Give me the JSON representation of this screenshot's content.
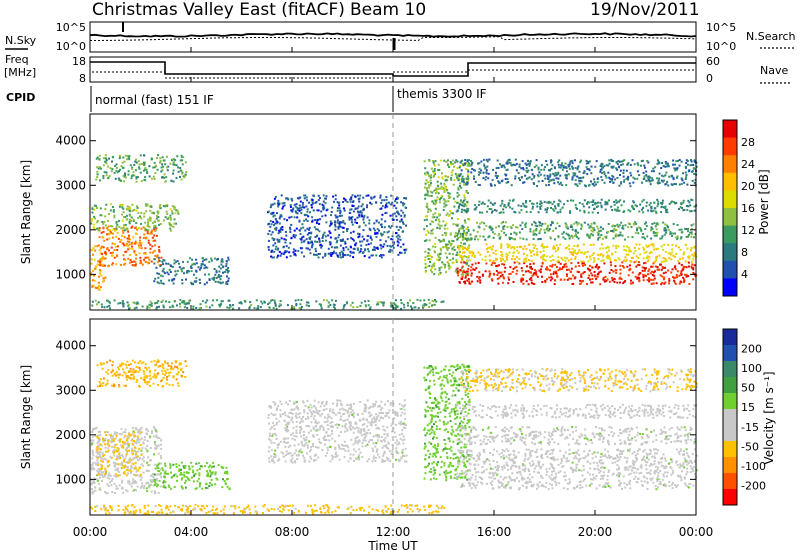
{
  "header": {
    "station": "Christmas Valley East (fitACF)",
    "beam": "Beam 10",
    "date": "19/Nov/2011"
  },
  "top_panels": {
    "nsky_label": "N.Sky",
    "nsky_ticks": [
      "10^5",
      "10^0"
    ],
    "nsearch_label": "N.Search",
    "nsearch_ticks": [
      "10^5",
      "10^0"
    ],
    "freq_label_line1": "Freq",
    "freq_label_line2": "[MHz]",
    "freq_ticks": [
      "18",
      "8"
    ],
    "nave_label": "Nave",
    "nave_ticks": [
      "60",
      "0"
    ],
    "cpid_label": "CPID",
    "cpid_modes": [
      {
        "name": "normal (fast) 151 IF",
        "start_hour": 0,
        "end_hour": 12
      },
      {
        "name": "themis 3300 IF",
        "start_hour": 12,
        "end_hour": 24
      }
    ]
  },
  "x_axis": {
    "title": "Time UT",
    "ticks": [
      "00:00",
      "04:00",
      "08:00",
      "12:00",
      "16:00",
      "20:00",
      "00:00"
    ]
  },
  "power_colorbar": {
    "title": "Power [dB]",
    "labels": [
      "28",
      "24",
      "20",
      "16",
      "12",
      "8",
      "4"
    ],
    "colors": [
      "#e60000",
      "#ff3b00",
      "#ff8000",
      "#ffbf00",
      "#dcdc00",
      "#90c040",
      "#3a9a60",
      "#2a7a80",
      "#2050b0",
      "#0000ff"
    ]
  },
  "velocity_colorbar": {
    "title": "Velocity [m s⁻¹]",
    "labels": [
      "200",
      "100",
      "50",
      "15",
      "-15",
      "-50",
      "-100",
      "-200"
    ],
    "colors": [
      "#1a2a9a",
      "#2050b0",
      "#3a8a6a",
      "#40a040",
      "#70d030",
      "#c8c8c8",
      "#c8c8c8",
      "#ffc000",
      "#ff9000",
      "#ff5000",
      "#ff0000"
    ]
  },
  "chart_data": [
    {
      "type": "heatmap",
      "name": "power",
      "ylabel": "Slant Range [km]",
      "xlabel": "Time UT",
      "xlim": [
        0,
        24
      ],
      "ylim": [
        200,
        4600
      ],
      "yticks": [
        1000,
        2000,
        3000,
        4000
      ],
      "value_label": "Power [dB]",
      "value_range": [
        0,
        30
      ],
      "regions": [
        {
          "t0": 0.0,
          "t1": 0.6,
          "r0": 650,
          "r1": 1700,
          "value": 20
        },
        {
          "t0": 0.3,
          "t1": 2.8,
          "r0": 1200,
          "r1": 2100,
          "value": 23
        },
        {
          "t0": 0.0,
          "t1": 3.5,
          "r0": 2000,
          "r1": 2600,
          "value": 13
        },
        {
          "t0": 0.2,
          "t1": 3.8,
          "r0": 3100,
          "r1": 3700,
          "value": 11
        },
        {
          "t0": 2.5,
          "t1": 5.5,
          "r0": 800,
          "r1": 1400,
          "value": 7
        },
        {
          "t0": 0.0,
          "t1": 14.0,
          "r0": 250,
          "r1": 450,
          "value": 10
        },
        {
          "t0": 7.0,
          "t1": 12.5,
          "r0": 1400,
          "r1": 2800,
          "value": 5
        },
        {
          "t0": 13.2,
          "t1": 15.0,
          "r0": 1000,
          "r1": 3600,
          "value": 13
        },
        {
          "t0": 14.5,
          "t1": 24.0,
          "r0": 800,
          "r1": 1300,
          "value": 27
        },
        {
          "t0": 14.5,
          "t1": 24.0,
          "r0": 1300,
          "r1": 1700,
          "value": 18
        },
        {
          "t0": 14.5,
          "t1": 24.0,
          "r0": 1800,
          "r1": 2200,
          "value": 11
        },
        {
          "t0": 14.5,
          "t1": 24.0,
          "r0": 2400,
          "r1": 2700,
          "value": 9
        },
        {
          "t0": 14.5,
          "t1": 24.0,
          "r0": 3000,
          "r1": 3600,
          "value": 7
        }
      ]
    },
    {
      "type": "heatmap",
      "name": "velocity",
      "ylabel": "Slant Range [km]",
      "xlabel": "Time UT",
      "xlim": [
        0,
        24
      ],
      "ylim": [
        200,
        4600
      ],
      "yticks": [
        1000,
        2000,
        3000,
        4000
      ],
      "value_label": "Velocity [m s-1]",
      "value_range": [
        -200,
        200
      ],
      "regions": [
        {
          "t0": 0.0,
          "t1": 2.8,
          "r0": 700,
          "r1": 2200,
          "value": 0
        },
        {
          "t0": 0.2,
          "t1": 2.0,
          "r0": 1100,
          "r1": 2100,
          "value": -60
        },
        {
          "t0": 0.2,
          "t1": 3.8,
          "r0": 3100,
          "r1": 3700,
          "value": -80
        },
        {
          "t0": 2.5,
          "t1": 5.5,
          "r0": 800,
          "r1": 1400,
          "value": 40
        },
        {
          "t0": 0.0,
          "t1": 14.0,
          "r0": 250,
          "r1": 450,
          "value": -70
        },
        {
          "t0": 7.0,
          "t1": 12.5,
          "r0": 1400,
          "r1": 2800,
          "value": 0
        },
        {
          "t0": 13.2,
          "t1": 15.0,
          "r0": 1000,
          "r1": 3600,
          "value": 40
        },
        {
          "t0": 14.5,
          "t1": 24.0,
          "r0": 800,
          "r1": 1700,
          "value": 0
        },
        {
          "t0": 14.5,
          "t1": 24.0,
          "r0": 1800,
          "r1": 2200,
          "value": 0
        },
        {
          "t0": 14.5,
          "t1": 24.0,
          "r0": 2400,
          "r1": 2700,
          "value": -20
        },
        {
          "t0": 14.5,
          "t1": 24.0,
          "r0": 3000,
          "r1": 3500,
          "value": -60
        }
      ]
    }
  ]
}
